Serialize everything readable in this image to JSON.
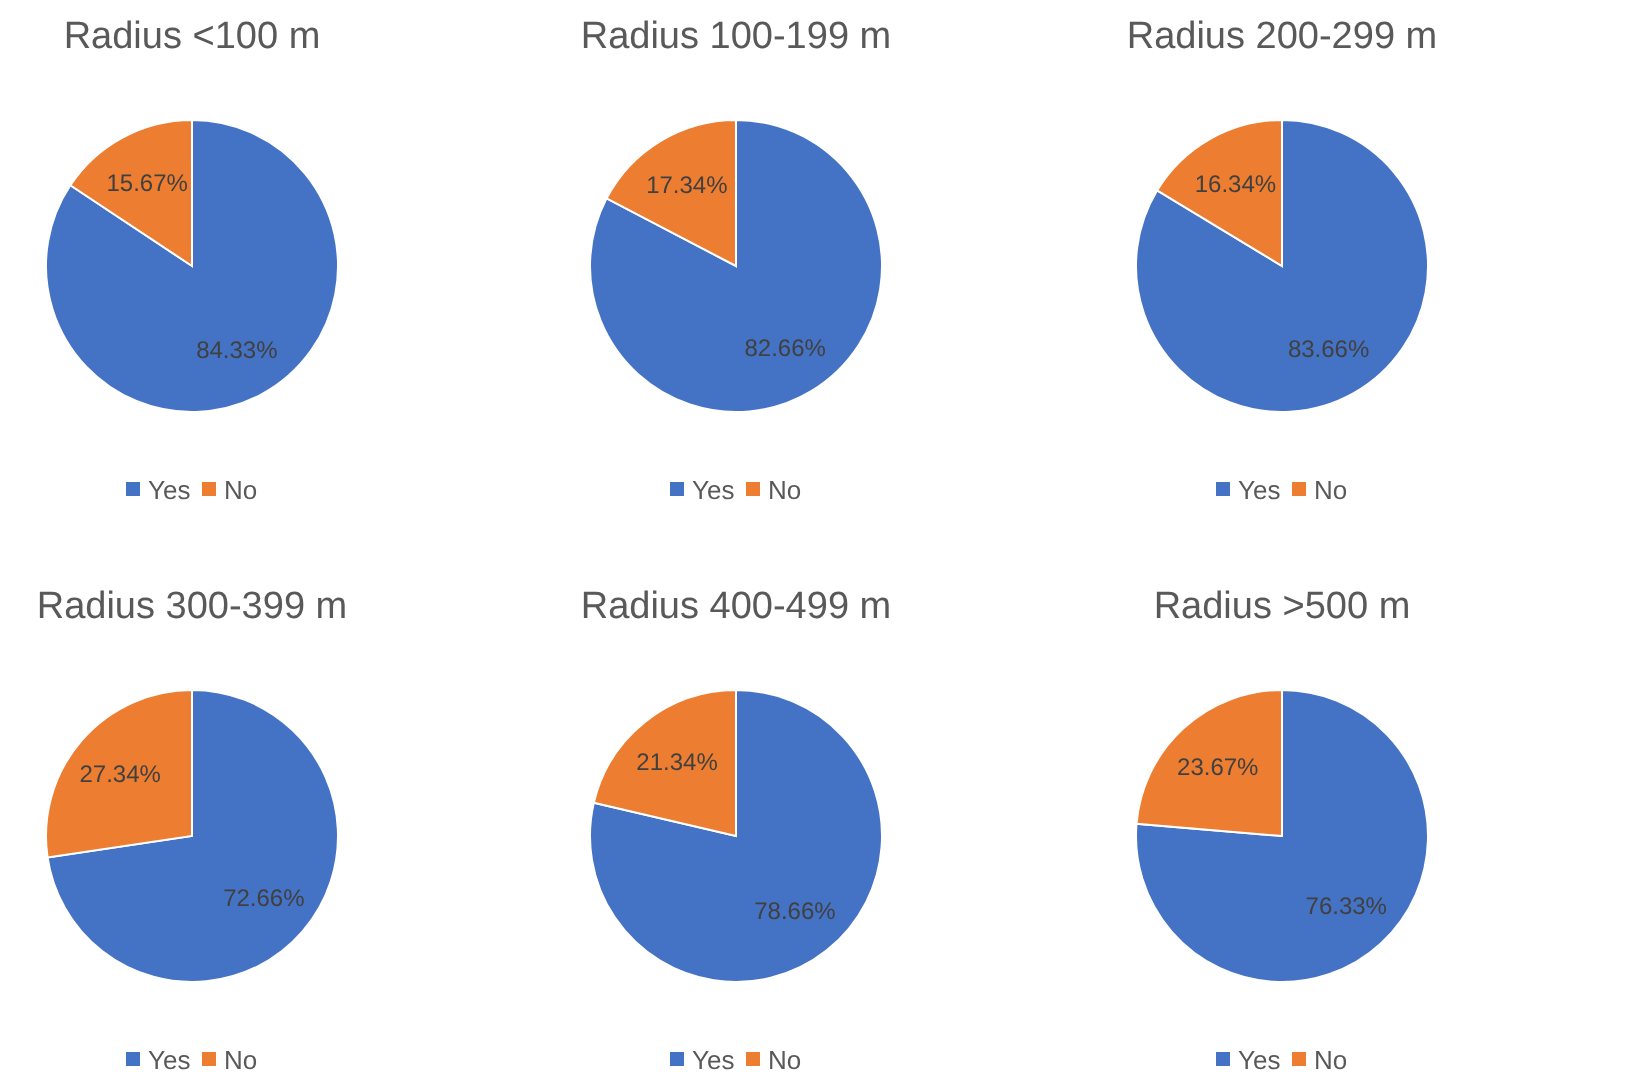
{
  "chart_data": [
    {
      "type": "pie",
      "title": "Radius <100 m",
      "categories": [
        "Yes",
        "No"
      ],
      "values": [
        84.33,
        15.67
      ],
      "colors": [
        "#4472c4",
        "#ed7d31"
      ],
      "value_labels": [
        "84.33%",
        "15.67%"
      ],
      "legend": "bottom"
    },
    {
      "type": "pie",
      "title": "Radius 100-199 m",
      "categories": [
        "Yes",
        "No"
      ],
      "values": [
        82.66,
        17.34
      ],
      "colors": [
        "#4472c4",
        "#ed7d31"
      ],
      "value_labels": [
        "82.66%",
        "17.34%"
      ],
      "legend": "bottom"
    },
    {
      "type": "pie",
      "title": "Radius 200-299 m",
      "categories": [
        "Yes",
        "No"
      ],
      "values": [
        83.66,
        16.34
      ],
      "colors": [
        "#4472c4",
        "#ed7d31"
      ],
      "value_labels": [
        "83.66%",
        "16.34%"
      ],
      "legend": "bottom"
    },
    {
      "type": "pie",
      "title": "Radius 300-399 m",
      "categories": [
        "Yes",
        "No"
      ],
      "values": [
        72.66,
        27.34
      ],
      "colors": [
        "#4472c4",
        "#ed7d31"
      ],
      "value_labels": [
        "72.66%",
        "27.34%"
      ],
      "legend": "bottom"
    },
    {
      "type": "pie",
      "title": "Radius 400-499 m",
      "categories": [
        "Yes",
        "No"
      ],
      "values": [
        78.66,
        21.34
      ],
      "colors": [
        "#4472c4",
        "#ed7d31"
      ],
      "value_labels": [
        "78.66%",
        "21.34%"
      ],
      "legend": "bottom"
    },
    {
      "type": "pie",
      "title": "Radius >500 m",
      "categories": [
        "Yes",
        "No"
      ],
      "values": [
        76.33,
        23.67
      ],
      "colors": [
        "#4472c4",
        "#ed7d31"
      ],
      "value_labels": [
        "76.33%",
        "23.67%"
      ],
      "legend": "bottom"
    }
  ]
}
